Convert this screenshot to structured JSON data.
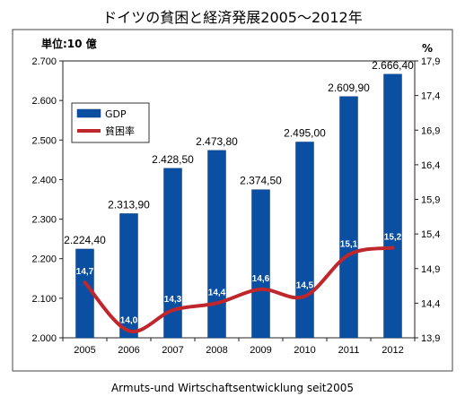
{
  "title": "ドイツの貧困と経済発展2005～2012年",
  "caption": "Armuts-und Wirtschaftsentwicklung seit2005",
  "chart_data": {
    "type": "bar",
    "categories": [
      "2005",
      "2006",
      "2007",
      "2008",
      "2009",
      "2010",
      "2011",
      "2012"
    ],
    "series": [
      {
        "name": "GDP",
        "type": "bar",
        "axis": "left",
        "color": "#0b4fa3",
        "values": [
          2224.4,
          2313.9,
          2428.5,
          2473.8,
          2374.5,
          2495.0,
          2609.9,
          2666.4
        ],
        "labels": [
          "2.224,40",
          "2.313,90",
          "2.428,50",
          "2.473,80",
          "2.374,50",
          "2.495,00",
          "2.609,90",
          "2.666,40"
        ]
      },
      {
        "name": "貧困率",
        "type": "line",
        "axis": "right",
        "color": "#c0272d",
        "values": [
          14.7,
          14.0,
          14.3,
          14.4,
          14.6,
          14.5,
          15.1,
          15.2
        ],
        "labels": [
          "14,7",
          "14,0",
          "14,3",
          "14,4",
          "14,6",
          "14,5",
          "15,1",
          "15,2"
        ]
      }
    ],
    "left_axis": {
      "unit_label": "単位:10 億",
      "ylim": [
        2000,
        2700
      ],
      "ticks": [
        "2.000",
        "2.100",
        "2.200",
        "2.300",
        "2.400",
        "2.500",
        "2.600",
        "2.700"
      ]
    },
    "right_axis": {
      "unit_label": "%",
      "ylim": [
        13.9,
        17.9
      ],
      "ticks": [
        "13,9",
        "14,4",
        "14,9",
        "15,4",
        "15,9",
        "16,4",
        "16,9",
        "17,4",
        "17,9"
      ]
    },
    "legend_position": "upper-left inside plot",
    "grid": false
  }
}
